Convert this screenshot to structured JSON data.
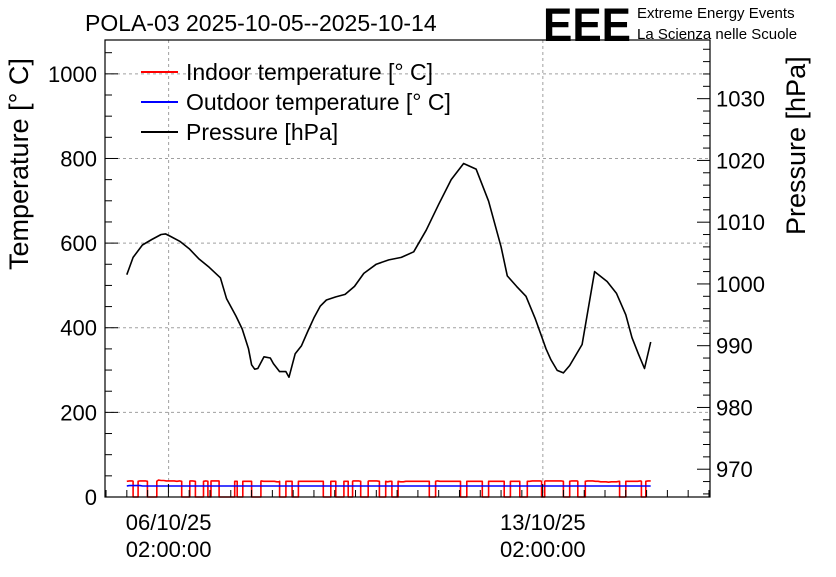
{
  "chart_data": {
    "type": "line",
    "title": "POLA-03 2025-10-05--2025-10-14",
    "logo": {
      "text": "EEE",
      "line1": "Extreme Energy Events",
      "line2": "La Scienza nelle Scuole",
      "color": "#1a1aee"
    },
    "ylabel_left": "Temperature [° C]",
    "ylabel_right": "Pressure [hPa]",
    "ylim_left": [
      0,
      1080
    ],
    "ylim_right": [
      965.5,
      1039.5
    ],
    "xlim": [
      -0.35,
      9.35
    ],
    "left_ticks": [
      0,
      200,
      400,
      600,
      800,
      1000
    ],
    "right_ticks": [
      970,
      980,
      990,
      1000,
      1010,
      1020,
      1030
    ],
    "x_ticks": [
      {
        "x": 0.67,
        "line1": "06/10/25",
        "line2": "02:00:00"
      },
      {
        "x": 6.67,
        "line1": "13/10/25",
        "line2": "02:00:00"
      }
    ],
    "grid": true,
    "legend_position": "top-left",
    "series": [
      {
        "name": "Indoor temperature [° C]",
        "color": "#ff0000",
        "axis": "left",
        "base_value": 37,
        "drop_value": 0,
        "segments": [
          [
            0.1,
            0.18
          ],
          [
            0.33,
            0.48
          ],
          [
            0.88,
            1.01
          ],
          [
            1.1,
            1.23
          ],
          [
            1.3,
            1.35
          ],
          [
            1.48,
            1.6
          ],
          [
            1.6,
            1.73
          ],
          [
            1.77,
            1.86
          ],
          [
            2.0,
            2.15
          ],
          [
            2.45,
            2.55
          ],
          [
            2.65,
            2.75
          ],
          [
            3.15,
            3.27
          ],
          [
            3.35,
            3.48
          ],
          [
            3.55,
            3.62
          ],
          [
            3.75,
            3.87
          ],
          [
            4.05,
            4.15
          ],
          [
            4.25,
            4.35
          ],
          [
            4.85,
            4.95
          ],
          [
            5.35,
            5.45
          ],
          [
            5.7,
            5.8
          ],
          [
            6.05,
            6.15
          ],
          [
            6.3,
            6.42
          ],
          [
            6.65,
            6.7
          ],
          [
            7.0,
            7.1
          ],
          [
            7.23,
            7.35
          ],
          [
            7.9,
            8.0
          ],
          [
            8.25,
            8.32
          ]
        ],
        "values": [
          37,
          38,
          38,
          38,
          38,
          38,
          38,
          38,
          38,
          39,
          40,
          40,
          40,
          39,
          39,
          38,
          38,
          38,
          38,
          37,
          38,
          38,
          38,
          38,
          38,
          38,
          37,
          37,
          37,
          38,
          38,
          38,
          38,
          38,
          38,
          38,
          38,
          38,
          38,
          38,
          37,
          37,
          37,
          37,
          37,
          37,
          37,
          37,
          38,
          38,
          38,
          38,
          37,
          37,
          37,
          37,
          37,
          36,
          36,
          36,
          37,
          37,
          37,
          37,
          37,
          37,
          37,
          37,
          37,
          37,
          37,
          37,
          37,
          37,
          37,
          37,
          37,
          37,
          37,
          37,
          37,
          37,
          37,
          37,
          37,
          37,
          38,
          38,
          38,
          38,
          38,
          38,
          38,
          38,
          38,
          38,
          38,
          38,
          37,
          36,
          37,
          36,
          36,
          36,
          36,
          36,
          37,
          37,
          37,
          37,
          37,
          37,
          37,
          37,
          37,
          38,
          38,
          38,
          38,
          37,
          37,
          37,
          37,
          37,
          37,
          37,
          37,
          37,
          37,
          37,
          37,
          37,
          37,
          37,
          37,
          37,
          37,
          37,
          37,
          37,
          37,
          37,
          37,
          37,
          37,
          37,
          37,
          37,
          37,
          37,
          37,
          37,
          37,
          37,
          38,
          38,
          38,
          38,
          38,
          38,
          38,
          38,
          38,
          38,
          38,
          38,
          38,
          38,
          38,
          38,
          38,
          38,
          38,
          38,
          38,
          38,
          38,
          38,
          37,
          37,
          36,
          36,
          36,
          35,
          36,
          36,
          36,
          37,
          37,
          37,
          37,
          37,
          37,
          37,
          37,
          38,
          38,
          38,
          38,
          38
        ]
      },
      {
        "name": "Outdoor temperature [° C]",
        "color": "#0000ff",
        "axis": "left",
        "base_value": 26,
        "drop_value": 0,
        "segments": [],
        "values": [
          26,
          27,
          27,
          27,
          27,
          27,
          26,
          26,
          26,
          26,
          26,
          26,
          26,
          26,
          26,
          26,
          26,
          26,
          26,
          26,
          26,
          26,
          26,
          26,
          26,
          26,
          26,
          26,
          26,
          26,
          26,
          26,
          26,
          26,
          26,
          26,
          26,
          26,
          26,
          26,
          26,
          26,
          26,
          26,
          26,
          26,
          26,
          26,
          26,
          26,
          26,
          26,
          26,
          26,
          26,
          26,
          26,
          26,
          26,
          26,
          26,
          26,
          26,
          26,
          26,
          26,
          26,
          26,
          26,
          26,
          26,
          26,
          26,
          26,
          26,
          26,
          26,
          26,
          26,
          26,
          26,
          26,
          26,
          26,
          26,
          26,
          26,
          26,
          26,
          26,
          26,
          26,
          26,
          26,
          26,
          26,
          26,
          26,
          26,
          26,
          26,
          26,
          26,
          26,
          26,
          26,
          26,
          26,
          26,
          26,
          26,
          26,
          26,
          26,
          26,
          26,
          26,
          26,
          26,
          26,
          26,
          26,
          26,
          26,
          26,
          26,
          26,
          26,
          26,
          26,
          26,
          26,
          26,
          26,
          26,
          26,
          26,
          26,
          26,
          26,
          26,
          26,
          26,
          26,
          26,
          26,
          26,
          26,
          26,
          26,
          26,
          26,
          26,
          26,
          26,
          26,
          26,
          26,
          26,
          26,
          26,
          26,
          26,
          26,
          26,
          26,
          26,
          26,
          26,
          26,
          26,
          26,
          26,
          26,
          26,
          26,
          26,
          26,
          26,
          26,
          26,
          26,
          26,
          26,
          26,
          26,
          26,
          26,
          26,
          26,
          26,
          26,
          26,
          26,
          26,
          26,
          26,
          26,
          26,
          26
        ]
      },
      {
        "name": "Pressure [hPa]",
        "color": "#000000",
        "axis": "right",
        "x": [
          0.0,
          0.1,
          0.25,
          0.4,
          0.55,
          0.62,
          0.7,
          0.85,
          1.0,
          1.15,
          1.32,
          1.5,
          1.6,
          1.75,
          1.85,
          1.95,
          2.0,
          2.05,
          2.1,
          2.2,
          2.3,
          2.35,
          2.45,
          2.55,
          2.6,
          2.7,
          2.8,
          2.9,
          3.0,
          3.1,
          3.2,
          3.35,
          3.5,
          3.65,
          3.8,
          4.0,
          4.2,
          4.4,
          4.6,
          4.8,
          5.0,
          5.2,
          5.4,
          5.6,
          5.8,
          6.0,
          6.1,
          6.25,
          6.4,
          6.55,
          6.65,
          6.72,
          6.8,
          6.9,
          7.0,
          7.1,
          7.3,
          7.5,
          7.7,
          7.85,
          8.0,
          8.1,
          8.2,
          8.3,
          8.4
        ],
        "values": [
          1001.5,
          1004.3,
          1006.3,
          1007.2,
          1008.0,
          1008.1,
          1007.7,
          1006.9,
          1005.7,
          1004.1,
          1002.7,
          1001.0,
          997.6,
          994.8,
          992.7,
          989.5,
          986.9,
          986.2,
          986.3,
          988.2,
          988.0,
          987.1,
          985.8,
          985.8,
          984.9,
          988.7,
          990.0,
          992.3,
          994.5,
          996.4,
          997.4,
          997.9,
          998.3,
          999.6,
          1001.7,
          1003.2,
          1003.9,
          1004.3,
          1005.2,
          1008.7,
          1012.9,
          1016.9,
          1019.5,
          1018.6,
          1013.4,
          1006.0,
          1001.3,
          999.6,
          998.0,
          994.3,
          991.5,
          989.5,
          987.7,
          986.0,
          985.6,
          986.8,
          990.2,
          1002.0,
          1000.4,
          998.5,
          995.0,
          991.3,
          988.7,
          986.3,
          990.6
        ]
      }
    ]
  }
}
